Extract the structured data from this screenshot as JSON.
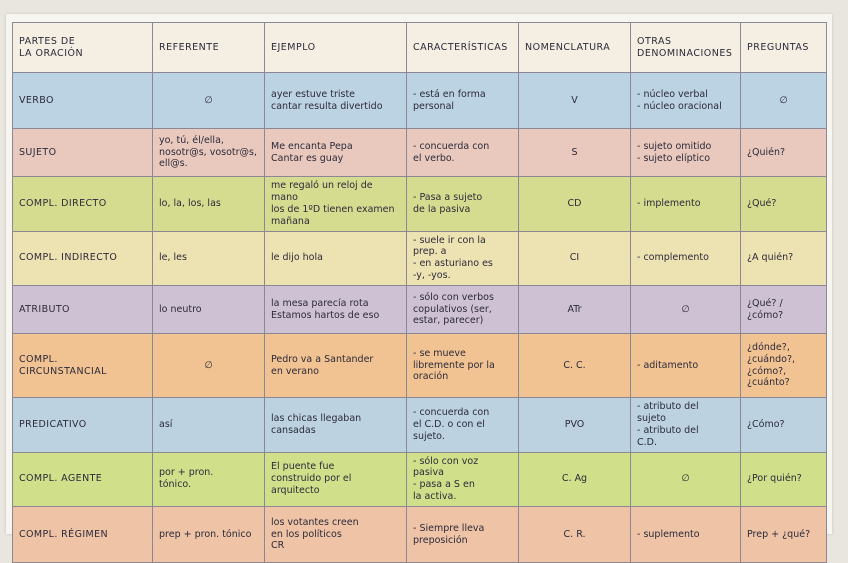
{
  "headers": [
    "PARTES DE\nLA ORACIÓN",
    "REFERENTE",
    "EJEMPLO",
    "CARACTERÍSTICAS",
    "NOMENCLATURA",
    "OTRAS\nDENOMINACIONES",
    "PREGUNTAS"
  ],
  "rows": [
    {
      "color": "#bcd3e4",
      "part": "VERBO",
      "referente": "∅",
      "ejemplo": "ayer estuve triste\ncantar resulta divertido",
      "caracteristicas": "- está en forma\npersonal",
      "nomenclatura": "V",
      "otras": "- núcleo verbal\n- núcleo oracional",
      "preguntas": "∅"
    },
    {
      "color": "#e9c9bd",
      "part": "SUJETO",
      "referente": "yo, tú, él/ella,\nnosotr@s, vosotr@s,\nell@s.",
      "ejemplo": "Me encanta Pepa\nCantar es guay",
      "caracteristicas": "- concuerda con\nel verbo.",
      "nomenclatura": "S",
      "otras": "- sujeto omitido\n- sujeto elíptico",
      "preguntas": "¿Quién?"
    },
    {
      "color": "#d6dc8f",
      "part": "COMPL. DIRECTO",
      "referente": "lo, la, los, las",
      "ejemplo": "me regaló un reloj de mano\nlos de 1ºD tienen examen mañana",
      "caracteristicas": "- Pasa a sujeto\nde la pasiva",
      "nomenclatura": "CD",
      "otras": "- implemento",
      "preguntas": "¿Qué?"
    },
    {
      "color": "#ede2b2",
      "part": "COMPL. INDIRECTO",
      "referente": "le, les",
      "ejemplo": "le dijo hola",
      "caracteristicas": "- suele ir con la\nprep. a\n- en asturiano es\n-y, -yos.",
      "nomenclatura": "CI",
      "otras": "- complemento",
      "preguntas": "¿A quién?"
    },
    {
      "color": "#cfc1d4",
      "part": "ATRIBUTO",
      "referente": "lo neutro",
      "ejemplo": "la mesa parecía rota\nEstamos hartos de eso",
      "caracteristicas": "- sólo con verbos\ncopulativos (ser,\nestar, parecer)",
      "nomenclatura": "ATr",
      "otras": "∅",
      "preguntas": "¿Qué? / ¿cómo?"
    },
    {
      "color": "#f1c392",
      "part": "COMPL. CIRCUNSTANCIAL",
      "referente": "∅",
      "ejemplo": "Pedro va a Santander\nen verano",
      "caracteristicas": "- se mueve\nlibremente por la\noración",
      "nomenclatura": "C. C.",
      "otras": "- aditamento",
      "preguntas": "¿dónde?,\n¿cuándo?,\n¿cómo?,\n¿cuánto?"
    },
    {
      "color": "#bcd2e0",
      "part": "PREDICATIVO",
      "referente": "así",
      "ejemplo": "las chicas llegaban\ncansadas",
      "caracteristicas": "- concuerda con\nel C.D. o con el\nsujeto.",
      "nomenclatura": "PVO",
      "otras": "- atributo del\nsujeto\n- atributo del\nC.D.",
      "preguntas": "¿Cómo?"
    },
    {
      "color": "#cfdf8a",
      "part": "COMPL. AGENTE",
      "referente": "por + pron.\ntónico.",
      "ejemplo": "El puente fue\nconstruido por el\narquitecto",
      "caracteristicas": "- sólo con voz\npasiva\n- pasa a S en\nla activa.",
      "nomenclatura": "C. Ag",
      "otras": "∅",
      "preguntas": "¿Por quién?"
    },
    {
      "color": "#eec3a6",
      "part": "COMPL. RÉGIMEN",
      "referente": "prep + pron. tónico",
      "ejemplo": "los votantes creen\nen los políticos\nCR",
      "caracteristicas": "- Siempre lleva\npreposición",
      "nomenclatura": "C. R.",
      "otras": "- suplemento",
      "preguntas": "Prep + ¿qué?"
    }
  ]
}
